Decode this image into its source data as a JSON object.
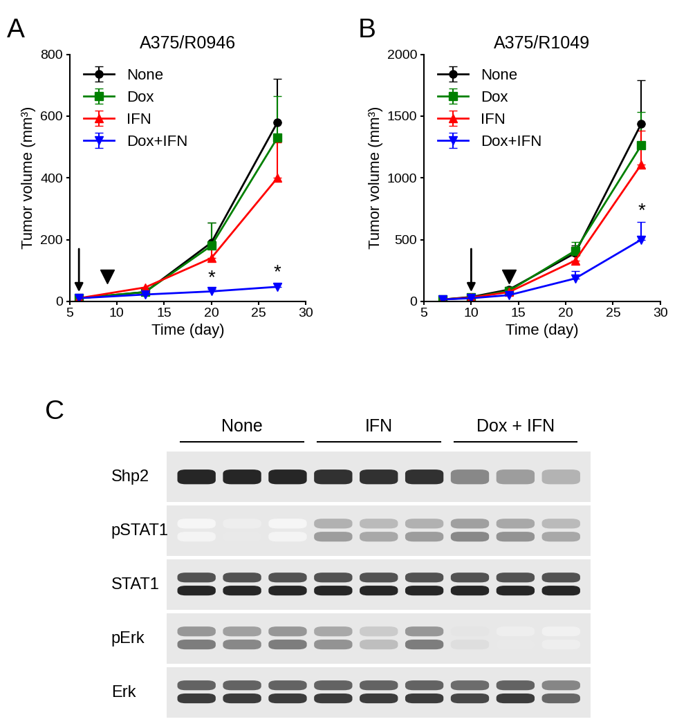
{
  "panel_labels": [
    "A",
    "B",
    "C"
  ],
  "chart_data": [
    {
      "type": "line",
      "title": "A375/R0946",
      "x_label": "Time (day)",
      "y_label": "Tumor volume (mm³)",
      "xlim": [
        5,
        30
      ],
      "xticks": [
        5,
        10,
        15,
        20,
        25,
        30
      ],
      "ylim": [
        0,
        800
      ],
      "yticks": [
        0,
        200,
        400,
        600,
        800
      ],
      "legend": "upper left",
      "grid": false,
      "events": [
        {
          "x": 6,
          "marker": "arrow"
        },
        {
          "x": 9,
          "marker": "arrowhead"
        }
      ],
      "annotations": [
        {
          "text": "*",
          "x": 20,
          "series": "Dox+IFN"
        },
        {
          "text": "*",
          "x": 27,
          "series": "Dox+IFN"
        }
      ],
      "series": [
        {
          "name": "None",
          "color": "#000000",
          "marker": "circle",
          "x": [
            6,
            13,
            20,
            27
          ],
          "values": [
            10,
            30,
            190,
            580
          ],
          "errors": [
            null,
            null,
            65,
            140
          ]
        },
        {
          "name": "Dox",
          "color": "#008000",
          "marker": "square",
          "x": [
            6,
            13,
            20,
            27
          ],
          "values": [
            10,
            30,
            180,
            530
          ],
          "errors": [
            null,
            null,
            75,
            135
          ]
        },
        {
          "name": "IFN",
          "color": "#ff0000",
          "marker": "triangle_up",
          "x": [
            6,
            13,
            20,
            27
          ],
          "values": [
            10,
            45,
            140,
            400
          ],
          "errors": [
            null,
            null,
            40,
            115
          ]
        },
        {
          "name": "Dox+IFN",
          "color": "#0000ff",
          "marker": "triangle_down",
          "x": [
            6,
            13,
            20,
            27
          ],
          "values": [
            10,
            22,
            32,
            47
          ],
          "errors": [
            null,
            null,
            8,
            10
          ]
        }
      ]
    },
    {
      "type": "line",
      "title": "A375/R1049",
      "x_label": "Time (day)",
      "y_label": "Tumor volume (mm³)",
      "xlim": [
        5,
        30
      ],
      "xticks": [
        5,
        10,
        15,
        20,
        25,
        30
      ],
      "ylim": [
        0,
        2000
      ],
      "yticks": [
        0,
        500,
        1000,
        1500,
        2000
      ],
      "legend": "upper left",
      "grid": false,
      "events": [
        {
          "x": 10,
          "marker": "arrow"
        },
        {
          "x": 14,
          "marker": "arrowhead"
        }
      ],
      "annotations": [
        {
          "text": "*",
          "x": 28,
          "series": "Dox+IFN"
        }
      ],
      "series": [
        {
          "name": "None",
          "color": "#000000",
          "marker": "circle",
          "x": [
            7,
            10,
            14,
            21,
            28
          ],
          "values": [
            15,
            35,
            95,
            390,
            1440
          ],
          "errors": [
            null,
            null,
            20,
            60,
            350
          ]
        },
        {
          "name": "Dox",
          "color": "#008000",
          "marker": "square",
          "x": [
            7,
            10,
            14,
            21,
            28
          ],
          "values": [
            15,
            30,
            85,
            410,
            1265
          ],
          "errors": [
            null,
            null,
            15,
            70,
            270
          ]
        },
        {
          "name": "IFN",
          "color": "#ff0000",
          "marker": "triangle_up",
          "x": [
            7,
            10,
            14,
            21,
            28
          ],
          "values": [
            15,
            30,
            75,
            330,
            1110
          ],
          "errors": [
            null,
            null,
            15,
            40,
            270
          ]
        },
        {
          "name": "Dox+IFN",
          "color": "#0000ff",
          "marker": "triangle_down",
          "x": [
            7,
            10,
            14,
            21,
            28
          ],
          "values": [
            15,
            25,
            50,
            185,
            500
          ],
          "errors": [
            null,
            null,
            10,
            60,
            145
          ]
        }
      ]
    }
  ],
  "blot": {
    "groups": [
      "None",
      "IFN",
      "Dox + IFN"
    ],
    "lanes_per_group": 3,
    "rows": [
      {
        "label": "Shp2",
        "bands": 1,
        "intensity": [
          1.0,
          1.0,
          1.0,
          0.95,
          0.95,
          0.95,
          0.55,
          0.45,
          0.35
        ]
      },
      {
        "label": "pSTAT1",
        "bands": 2,
        "intensity": [
          0.05,
          0.1,
          0.05,
          0.45,
          0.4,
          0.45,
          0.55,
          0.5,
          0.4
        ]
      },
      {
        "label": "STAT1",
        "bands": 2,
        "intensity": [
          1.0,
          1.0,
          1.0,
          1.0,
          1.0,
          1.0,
          1.0,
          1.0,
          1.0
        ]
      },
      {
        "label": "pErk",
        "bands": 2,
        "intensity": [
          0.6,
          0.55,
          0.6,
          0.5,
          0.3,
          0.6,
          0.15,
          0.1,
          0.08
        ]
      },
      {
        "label": "Erk",
        "bands": 2,
        "intensity": [
          0.9,
          0.9,
          0.9,
          0.9,
          0.9,
          0.9,
          0.85,
          0.9,
          0.7
        ]
      }
    ]
  }
}
